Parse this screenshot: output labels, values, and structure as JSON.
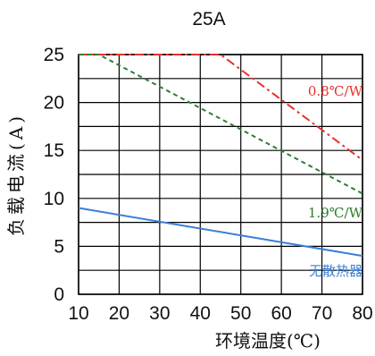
{
  "chart_data": {
    "type": "line",
    "title": "25A",
    "xlabel": "环境温度(℃)",
    "ylabel": "负载电流(A)",
    "xlim": [
      10,
      80
    ],
    "ylim": [
      0,
      25
    ],
    "x_ticks": [
      "10",
      "20",
      "30",
      "40",
      "50",
      "60",
      "70",
      "80"
    ],
    "y_ticks": [
      "0",
      "5",
      "10",
      "15",
      "20",
      "25"
    ],
    "grid": true,
    "series": [
      {
        "name": "0.8℃/W",
        "color": "#e8312d",
        "style": "dash-dot",
        "x": [
          10,
          45,
          80
        ],
        "y": [
          25,
          25,
          14
        ]
      },
      {
        "name": "1.9℃/W",
        "color": "#2e7d32",
        "style": "dashed",
        "x": [
          10,
          15,
          80
        ],
        "y": [
          25,
          25,
          10.5
        ]
      },
      {
        "name": "无散热器",
        "color": "#3a7fd5",
        "style": "solid",
        "x": [
          10,
          80
        ],
        "y": [
          9,
          4
        ]
      }
    ]
  }
}
